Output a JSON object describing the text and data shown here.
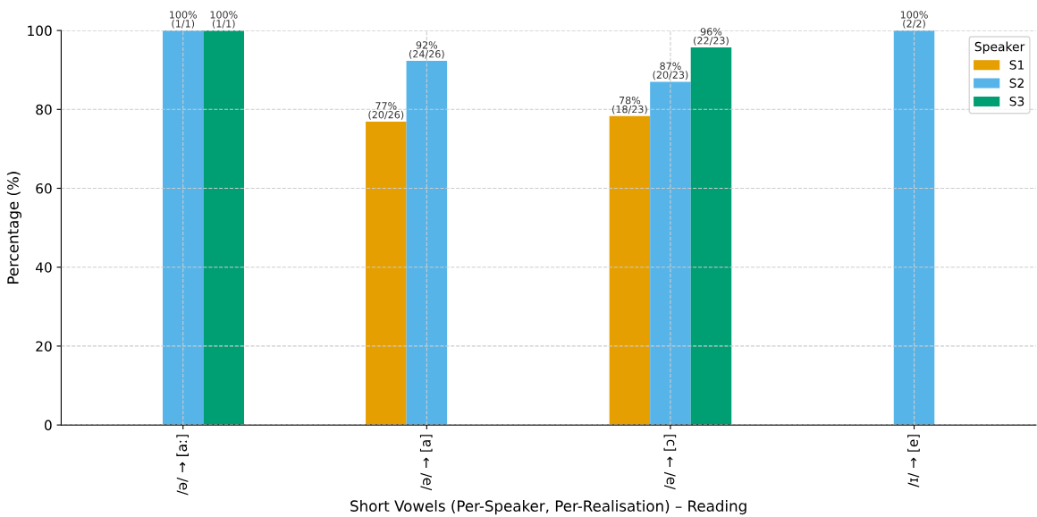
{
  "chart_data": {
    "type": "bar",
    "xlabel": "Short Vowels (Per-Speaker, Per-Realisation) – Reading",
    "ylabel": "Percentage (%)",
    "legend_title": "Speaker",
    "categories": [
      "/ə/ → [aː]",
      "/ə/ → [a]",
      "/ə/ → [ɔ]",
      "/ɪ/ → [e]"
    ],
    "series": [
      {
        "name": "S1",
        "color": "#e69f00",
        "values": [
          null,
          76.9,
          78.3,
          null
        ],
        "value_labels": [
          null,
          "77%\n(20/26)",
          "78%\n(18/23)",
          null
        ]
      },
      {
        "name": "S2",
        "color": "#56b4e9",
        "values": [
          100,
          92.3,
          87.0,
          100
        ],
        "value_labels": [
          "100%\n(1/1)",
          "92%\n(24/26)",
          "87%\n(20/23)",
          "100%\n(2/2)"
        ]
      },
      {
        "name": "S3",
        "color": "#009e73",
        "values": [
          100,
          null,
          95.7,
          null
        ],
        "value_labels": [
          "100%\n(1/1)",
          null,
          "96%\n(22/23)",
          null
        ]
      }
    ],
    "ylim": [
      0,
      100
    ],
    "yticks": [
      0,
      20,
      40,
      60,
      80,
      100
    ],
    "grid": true,
    "legend": "top right"
  }
}
